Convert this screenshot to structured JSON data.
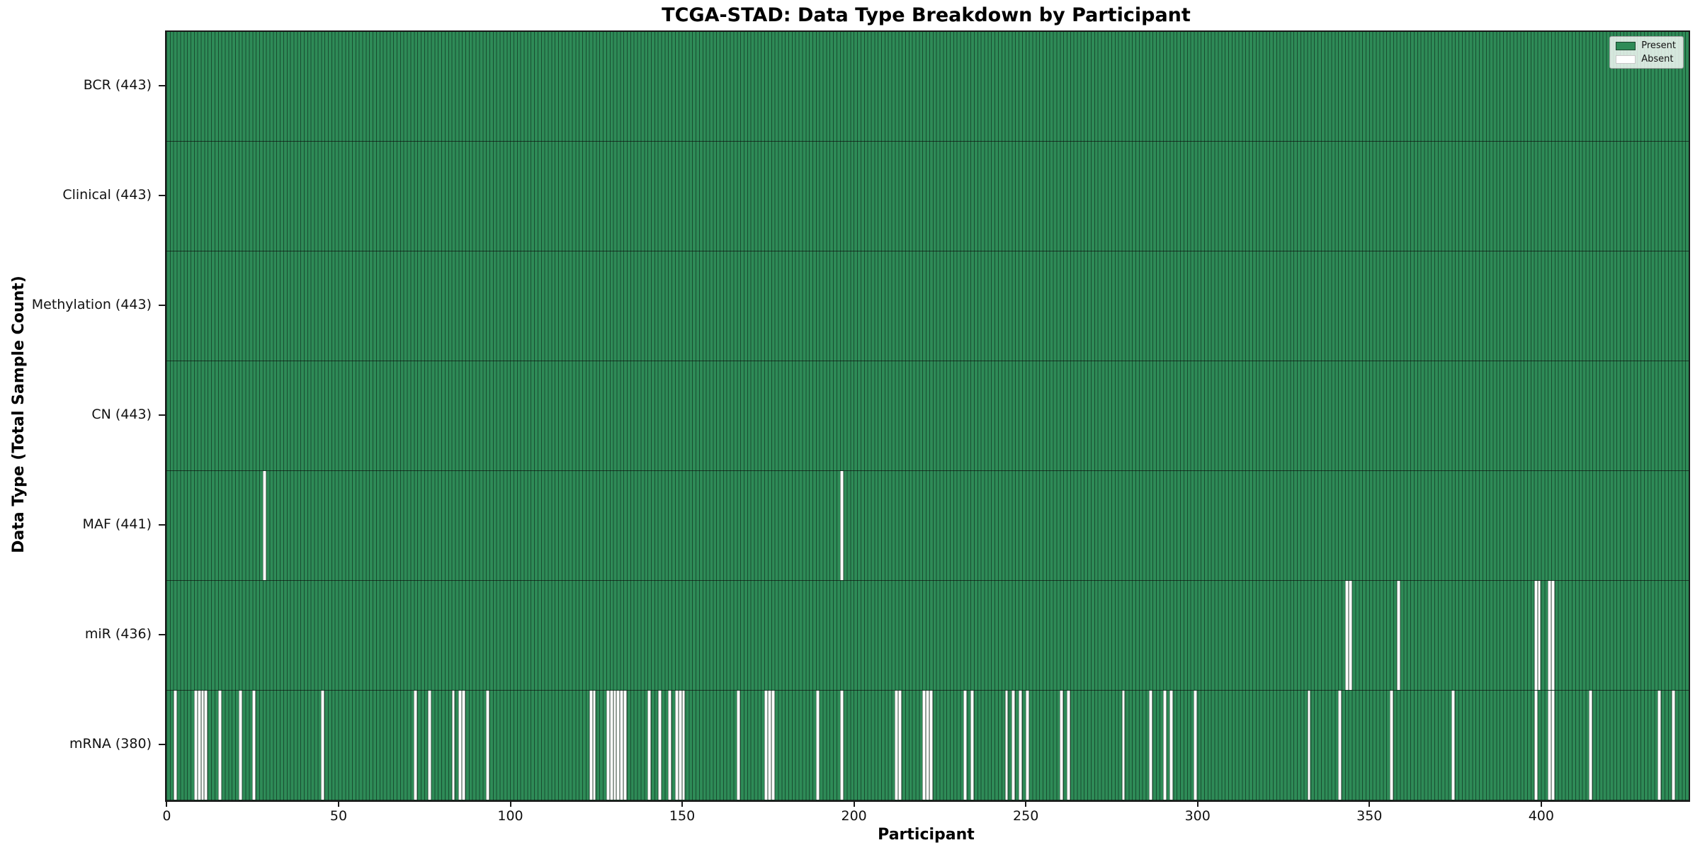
{
  "title": "TCGA-STAD: Data Type Breakdown by Participant",
  "axes": {
    "x_label": "Participant",
    "y_label": "Data Type (Total Sample Count)"
  },
  "legend": {
    "present_label": "Present",
    "absent_label": "Absent"
  },
  "colors": {
    "present": "#2e8b57",
    "absent": "#ffffff",
    "bar_edge": "rgba(10,35,22,0.6)",
    "row_divider": "rgba(10,10,10,0.65)",
    "spine": "#1a1a1a"
  },
  "chart_data": {
    "type": "heatmap",
    "title": "TCGA-STAD: Data Type Breakdown by Participant",
    "xlabel": "Participant",
    "ylabel": "Data Type (Total Sample Count)",
    "legend_entries": [
      "Present",
      "Absent"
    ],
    "legend_position": "upper right",
    "n_participants": 443,
    "x_range": [
      0,
      443
    ],
    "x_ticks": [
      0,
      50,
      100,
      150,
      200,
      250,
      300,
      350,
      400
    ],
    "cell_values": "1 = present (green), 0 = absent (white)",
    "rows": [
      {
        "name": "BCR",
        "label": "BCR (443)",
        "present_count": 443,
        "absent_participants": []
      },
      {
        "name": "Clinical",
        "label": "Clinical (443)",
        "present_count": 443,
        "absent_participants": []
      },
      {
        "name": "Methylation",
        "label": "Methylation (443)",
        "present_count": 443,
        "absent_participants": []
      },
      {
        "name": "CN",
        "label": "CN (443)",
        "present_count": 443,
        "absent_participants": []
      },
      {
        "name": "MAF",
        "label": "MAF (441)",
        "present_count": 441,
        "absent_participants": [
          28,
          196
        ]
      },
      {
        "name": "miR",
        "label": "miR (436)",
        "present_count": 436,
        "absent_participants": [
          343,
          344,
          358,
          398,
          399,
          402,
          403
        ]
      },
      {
        "name": "mRNA",
        "label": "mRNA (380)",
        "present_count": 380,
        "absent_participants": [
          2,
          8,
          9,
          10,
          11,
          15,
          21,
          25,
          45,
          72,
          76,
          83,
          85,
          86,
          93,
          123,
          124,
          128,
          129,
          130,
          131,
          132,
          133,
          140,
          143,
          146,
          148,
          149,
          150,
          166,
          174,
          175,
          176,
          189,
          196,
          212,
          213,
          220,
          221,
          222,
          232,
          234,
          244,
          246,
          248,
          250,
          260,
          262,
          278,
          286,
          290,
          292,
          299,
          332,
          341,
          356,
          374,
          398,
          402,
          403,
          414,
          434,
          438
        ]
      }
    ]
  }
}
